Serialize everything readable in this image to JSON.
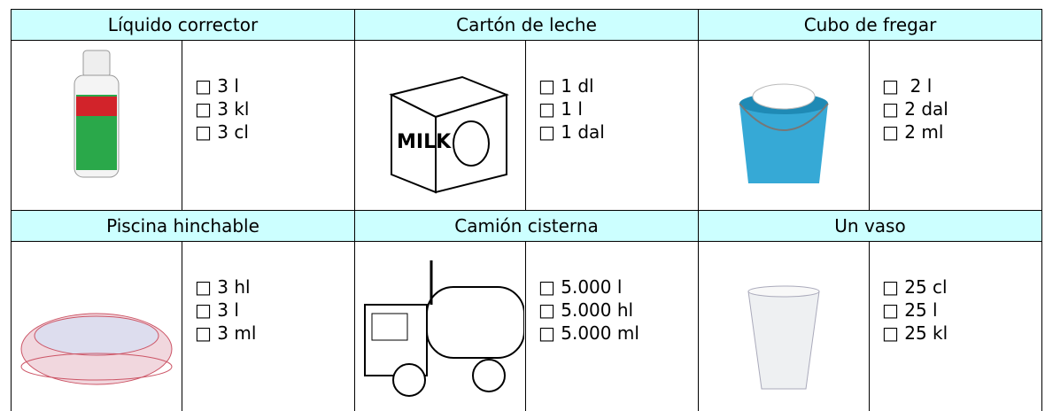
{
  "table": {
    "items": [
      {
        "title": "Líquido corrector",
        "options": [
          "□ 3 l",
          "□ 3 kl",
          "□ 3 cl"
        ]
      },
      {
        "title": "Cartón de leche",
        "options": [
          "□ 1 dl",
          "□ 1 l",
          "□ 1 dal"
        ]
      },
      {
        "title": "Cubo de fregar",
        "options": [
          "□  2 l",
          "□ 2 dal",
          "□ 2 ml"
        ]
      },
      {
        "title": "Piscina hinchable",
        "options": [
          "□ 3 hl",
          "□ 3 l",
          "□ 3 ml"
        ]
      },
      {
        "title": "Camión cisterna",
        "options": [
          "□ 5.000 l",
          "□ 5.000 hl",
          "□ 5.000 ml"
        ]
      },
      {
        "title": "Un vaso",
        "options": [
          "□ 25 cl",
          "□ 25 l",
          "□ 25 kl"
        ]
      }
    ]
  }
}
